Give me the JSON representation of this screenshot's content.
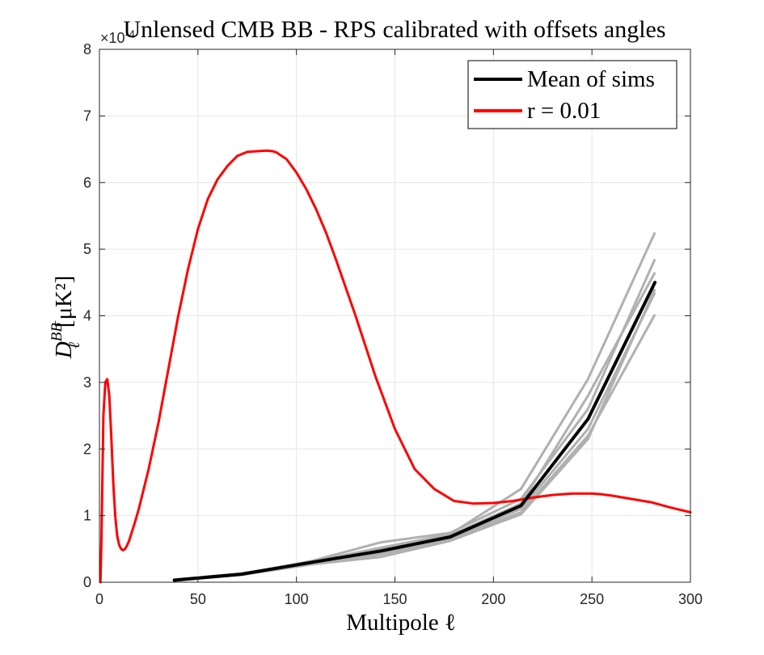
{
  "chart_data": {
    "type": "line",
    "title": "Unlensed CMB BB - RPS calibrated with offsets angles",
    "xlabel": "Multipole ℓ",
    "ylabel": {
      "main": "D",
      "sub": "ℓ",
      "sup": "BB",
      "units": "[μK²]"
    },
    "exponent_label": {
      "base": "×10",
      "power": "-4"
    },
    "xlim": [
      0,
      300
    ],
    "ylim": [
      0,
      8
    ],
    "y_scale_note": "values in units of 1e-4",
    "x_ticks": [
      0,
      50,
      100,
      150,
      200,
      250,
      300
    ],
    "y_ticks": [
      0,
      1,
      2,
      3,
      4,
      5,
      6,
      7,
      8
    ],
    "grid": true,
    "legend_position": "top-right",
    "series": [
      {
        "name": "Mean of sims",
        "color": "#000000",
        "x": [
          38,
          72,
          108,
          143,
          178,
          214,
          248,
          282
        ],
        "y": [
          0.03,
          0.12,
          0.3,
          0.47,
          0.68,
          1.15,
          2.45,
          4.5
        ]
      },
      {
        "name": "r = 0.01",
        "color": "#ff0000",
        "x": [
          0.5,
          1,
          2,
          3,
          4,
          5,
          6,
          7,
          8,
          9,
          10,
          11,
          12,
          13,
          14,
          15,
          18,
          20,
          25,
          30,
          35,
          40,
          45,
          50,
          55,
          60,
          65,
          70,
          75,
          80,
          85,
          88,
          90,
          95,
          100,
          105,
          110,
          115,
          120,
          130,
          140,
          150,
          160,
          170,
          180,
          190,
          200,
          210,
          220,
          230,
          240,
          250,
          255,
          260,
          270,
          280,
          290,
          300
        ],
        "y": [
          0.0,
          0.6,
          2.5,
          3.0,
          3.05,
          2.8,
          2.2,
          1.5,
          1.0,
          0.7,
          0.56,
          0.5,
          0.48,
          0.5,
          0.55,
          0.62,
          0.9,
          1.1,
          1.7,
          2.4,
          3.2,
          4.0,
          4.7,
          5.3,
          5.75,
          6.05,
          6.25,
          6.4,
          6.46,
          6.47,
          6.48,
          6.47,
          6.45,
          6.35,
          6.15,
          5.9,
          5.6,
          5.25,
          4.85,
          4.0,
          3.1,
          2.3,
          1.7,
          1.4,
          1.22,
          1.18,
          1.19,
          1.22,
          1.27,
          1.31,
          1.33,
          1.33,
          1.32,
          1.3,
          1.25,
          1.2,
          1.12,
          1.05
        ]
      }
    ],
    "sim_series": {
      "color": "#b0b0b0",
      "x": [
        38,
        72,
        108,
        143,
        178,
        214,
        248,
        282
      ],
      "runs": [
        [
          0.03,
          0.11,
          0.28,
          0.42,
          0.64,
          1.05,
          2.2,
          4.02
        ],
        [
          0.04,
          0.13,
          0.31,
          0.52,
          0.72,
          1.4,
          3.05,
          5.25
        ],
        [
          0.03,
          0.12,
          0.29,
          0.45,
          0.66,
          1.1,
          2.3,
          4.35
        ],
        [
          0.04,
          0.12,
          0.32,
          0.6,
          0.74,
          1.25,
          2.6,
          4.85
        ],
        [
          0.03,
          0.11,
          0.27,
          0.38,
          0.62,
          1.02,
          2.15,
          4.4
        ],
        [
          0.04,
          0.13,
          0.3,
          0.5,
          0.7,
          1.18,
          2.8,
          4.65
        ]
      ]
    },
    "legend": {
      "items": [
        {
          "label": "Mean of sims",
          "color": "#000000"
        },
        {
          "label": "r = 0.01",
          "color": "#ff0000"
        }
      ]
    }
  }
}
